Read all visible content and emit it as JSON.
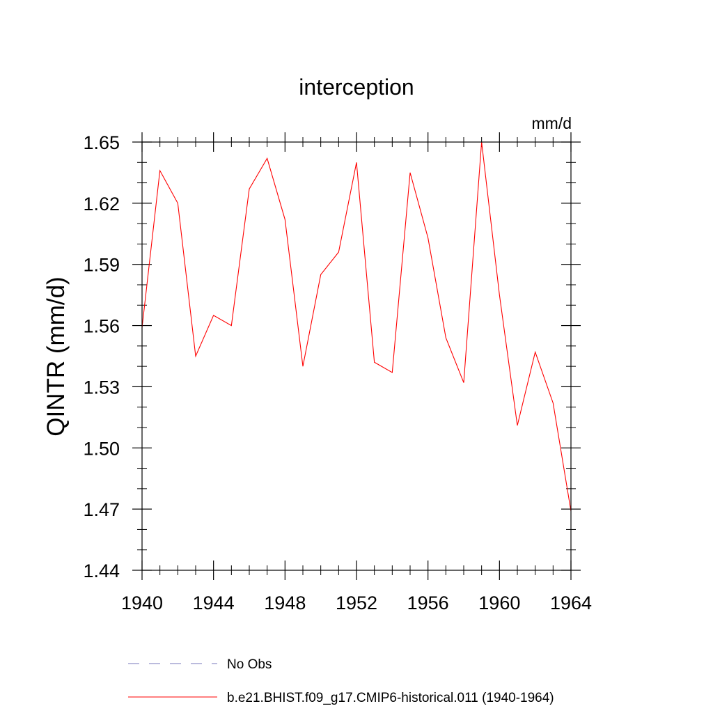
{
  "chart_data": {
    "type": "line",
    "title": "interception",
    "units": "mm/d",
    "ylabel": "QINTR  (mm/d)",
    "xlabel": "",
    "xlim": [
      1940,
      1964
    ],
    "ylim": [
      1.44,
      1.65
    ],
    "x_ticks": [
      1940,
      1944,
      1948,
      1952,
      1956,
      1960,
      1964
    ],
    "y_ticks": [
      "1.44",
      "1.47",
      "1.50",
      "1.53",
      "1.56",
      "1.59",
      "1.62",
      "1.65"
    ],
    "y_tick_values": [
      1.44,
      1.47,
      1.5,
      1.53,
      1.56,
      1.59,
      1.62,
      1.65
    ],
    "x_minor_step": 1,
    "y_minor_step": 0.01,
    "grid": false,
    "legend_position": "bottom",
    "series": [
      {
        "name": "b.e21.BHIST.f09_g17.CMIP6-historical.011 (1940-1964)",
        "color": "#ff0000",
        "style": "solid",
        "x": [
          1940,
          1941,
          1942,
          1943,
          1944,
          1945,
          1946,
          1947,
          1948,
          1949,
          1950,
          1951,
          1952,
          1953,
          1954,
          1955,
          1956,
          1957,
          1958,
          1959,
          1960,
          1961,
          1962,
          1963,
          1964
        ],
        "values": [
          1.559,
          1.636,
          1.62,
          1.545,
          1.565,
          1.56,
          1.627,
          1.642,
          1.612,
          1.54,
          1.585,
          1.596,
          1.64,
          1.542,
          1.537,
          1.635,
          1.603,
          1.554,
          1.532,
          1.65,
          1.575,
          1.511,
          1.547,
          1.522,
          1.469
        ]
      }
    ],
    "legend": [
      {
        "label": "No Obs",
        "color": "#7777bb",
        "style": "dashed"
      },
      {
        "label": "b.e21.BHIST.f09_g17.CMIP6-historical.011 (1940-1964)",
        "color": "#ff0000",
        "style": "solid"
      }
    ]
  }
}
